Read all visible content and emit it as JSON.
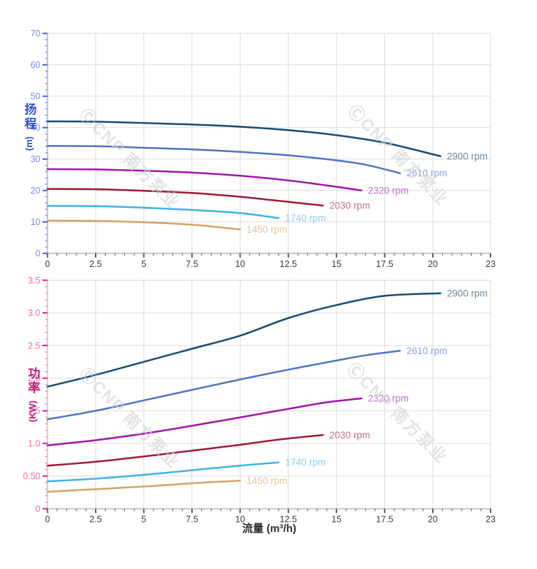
{
  "x_axis": {
    "title": "流量 (m³/h)",
    "title_color": "#2d2d2d",
    "min": 0,
    "max": 23,
    "minor_step": 0.5,
    "tick_values": [
      0,
      2.5,
      5,
      7.5,
      10,
      12.5,
      15,
      17.5,
      20,
      23
    ],
    "tick_labels": [
      "0",
      "2.5",
      "5",
      "7.5",
      "10",
      "12.5",
      "15",
      "17.5",
      "20",
      "23"
    ],
    "tick_label_color": "#3a3a3a",
    "tick_color": "#4a4a4a",
    "minor_tick_color": "#6e6e6e",
    "spine_color": "#c2c2c2"
  },
  "grid_color": "#dcdcdc",
  "watermark": {
    "text": "ⒸCNP 南方泵业",
    "color": "#d2d2d2"
  },
  "chart_data": [
    {
      "type": "line",
      "name": "head-chart",
      "y_axis": {
        "title": "扬程",
        "unit": "(m)",
        "min": 0,
        "max": 70,
        "major_step": 10,
        "minor_step": 2,
        "tick_values": [
          0,
          10,
          20,
          30,
          40,
          50,
          60,
          70
        ],
        "tick_labels": [
          "0",
          "10",
          "20",
          "30",
          "40",
          "50",
          "60",
          "70"
        ],
        "title_color": "#2f4fd8",
        "tick_label_color": "#7d89e2",
        "tick_color": "#4a5fd0",
        "minor_tick_color": "#8a95e6",
        "spine_color": "#b0bce4"
      },
      "series": [
        {
          "label": "2900 rpm",
          "color": "#1b4a72",
          "label_color": "#71879f",
          "points": [
            [
              0,
              42
            ],
            [
              2.5,
              41.9
            ],
            [
              5,
              41.5
            ],
            [
              7.5,
              41
            ],
            [
              10,
              40.3
            ],
            [
              12.5,
              39.2
            ],
            [
              15,
              37.6
            ],
            [
              17.5,
              35.2
            ],
            [
              20.4,
              30.9
            ]
          ]
        },
        {
          "label": "2610 rpm",
          "color": "#4f74c2",
          "label_color": "#87a3da",
          "points": [
            [
              0,
              34.2
            ],
            [
              2.5,
              34.1
            ],
            [
              5,
              33.6
            ],
            [
              7.5,
              33.1
            ],
            [
              10,
              32.3
            ],
            [
              12.5,
              31.2
            ],
            [
              15,
              29.6
            ],
            [
              16.5,
              28.2
            ],
            [
              18.3,
              25.5
            ]
          ]
        },
        {
          "label": "2320 rpm",
          "color": "#a016a8",
          "label_color": "#bc6ec6",
          "points": [
            [
              0,
              26.8
            ],
            [
              2.5,
              26.7
            ],
            [
              5,
              26.3
            ],
            [
              7.5,
              25.7
            ],
            [
              10,
              24.7
            ],
            [
              12.5,
              23.2
            ],
            [
              14.5,
              21.6
            ],
            [
              16.3,
              20
            ]
          ]
        },
        {
          "label": "2030 rpm",
          "color": "#9e1a35",
          "label_color": "#b57480",
          "points": [
            [
              0,
              20.5
            ],
            [
              2.5,
              20.4
            ],
            [
              5,
              19.9
            ],
            [
              7.5,
              19.2
            ],
            [
              10,
              18
            ],
            [
              12,
              16.7
            ],
            [
              14.3,
              15.2
            ]
          ]
        },
        {
          "label": "1740 rpm",
          "color": "#3fb3e3",
          "label_color": "#8ecdec",
          "points": [
            [
              0,
              15.1
            ],
            [
              2.5,
              15
            ],
            [
              5,
              14.5
            ],
            [
              7.5,
              13.8
            ],
            [
              10,
              12.8
            ],
            [
              12,
              11.2
            ]
          ]
        },
        {
          "label": "1450 rpm",
          "color": "#d6a267",
          "label_color": "#e4c298",
          "points": [
            [
              0,
              10.4
            ],
            [
              2.5,
              10.3
            ],
            [
              5,
              9.9
            ],
            [
              7.5,
              9.1
            ],
            [
              10,
              7.6
            ]
          ]
        }
      ]
    },
    {
      "type": "line",
      "name": "power-chart",
      "y_axis": {
        "title": "功率",
        "unit": "(KW)",
        "min": 0,
        "max": 3.5,
        "major_step": 0.5,
        "minor_step": 0.1,
        "tick_values": [
          0,
          0.5,
          1,
          1.5,
          2,
          2.5,
          3,
          3.5
        ],
        "tick_labels": [
          "0",
          "0.50",
          "1.0",
          "1.5",
          "2.0",
          "2.5",
          "3.0",
          "3.5"
        ],
        "title_color": "#c4157c",
        "tick_label_color": "#ea6cae",
        "tick_color": "#e0188c",
        "minor_tick_color": "#f08cc2",
        "spine_color": "#e6bcd6"
      },
      "series": [
        {
          "label": "2900 rpm",
          "color": "#1b4a72",
          "label_color": "#71879f",
          "points": [
            [
              0,
              1.87
            ],
            [
              2.5,
              2.05
            ],
            [
              5,
              2.25
            ],
            [
              7.5,
              2.45
            ],
            [
              10,
              2.65
            ],
            [
              12.5,
              2.92
            ],
            [
              15,
              3.12
            ],
            [
              17.5,
              3.26
            ],
            [
              20.4,
              3.3
            ]
          ]
        },
        {
          "label": "2610 rpm",
          "color": "#4f74c2",
          "label_color": "#87a3da",
          "points": [
            [
              0,
              1.37
            ],
            [
              2.5,
              1.5
            ],
            [
              5,
              1.66
            ],
            [
              7.5,
              1.82
            ],
            [
              10,
              1.98
            ],
            [
              12.5,
              2.13
            ],
            [
              15,
              2.27
            ],
            [
              16.5,
              2.35
            ],
            [
              18.3,
              2.42
            ]
          ]
        },
        {
          "label": "2320 rpm",
          "color": "#a016a8",
          "label_color": "#bc6ec6",
          "points": [
            [
              0,
              0.97
            ],
            [
              2.5,
              1.05
            ],
            [
              5,
              1.15
            ],
            [
              7.5,
              1.27
            ],
            [
              10,
              1.4
            ],
            [
              12.5,
              1.53
            ],
            [
              14.5,
              1.63
            ],
            [
              16.3,
              1.69
            ]
          ]
        },
        {
          "label": "2030 rpm",
          "color": "#9e1a35",
          "label_color": "#b57480",
          "points": [
            [
              0,
              0.66
            ],
            [
              2.5,
              0.72
            ],
            [
              5,
              0.8
            ],
            [
              7.5,
              0.89
            ],
            [
              10,
              0.98
            ],
            [
              12,
              1.06
            ],
            [
              14.3,
              1.13
            ]
          ]
        },
        {
          "label": "1740 rpm",
          "color": "#3fb3e3",
          "label_color": "#8ecdec",
          "points": [
            [
              0,
              0.42
            ],
            [
              2.5,
              0.46
            ],
            [
              5,
              0.52
            ],
            [
              7.5,
              0.59
            ],
            [
              10,
              0.66
            ],
            [
              12,
              0.71
            ]
          ]
        },
        {
          "label": "1450 rpm",
          "color": "#d6a267",
          "label_color": "#e4c298",
          "points": [
            [
              0,
              0.26
            ],
            [
              2.5,
              0.3
            ],
            [
              5,
              0.34
            ],
            [
              7.5,
              0.39
            ],
            [
              10,
              0.43
            ]
          ]
        }
      ]
    }
  ]
}
